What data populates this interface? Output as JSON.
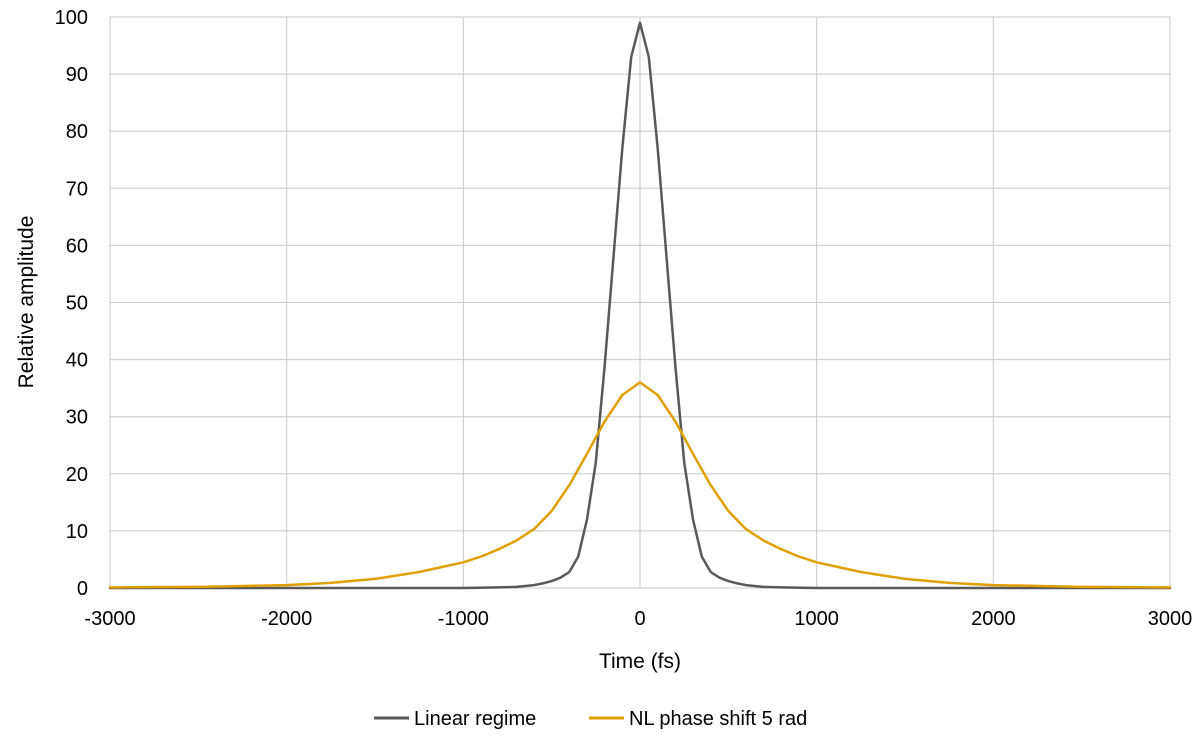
{
  "chart_data": {
    "type": "line",
    "title": "",
    "xlabel": "Time (fs)",
    "ylabel": "Relative amplitude",
    "xlim": [
      -3000,
      3000
    ],
    "ylim": [
      0,
      100
    ],
    "xticks": [
      -3000,
      -2000,
      -1000,
      0,
      1000,
      2000,
      3000
    ],
    "yticks": [
      0,
      10,
      20,
      30,
      40,
      50,
      60,
      70,
      80,
      90,
      100
    ],
    "grid": true,
    "legend_position": "bottom",
    "series": [
      {
        "name": "Linear regime",
        "color": "#595959",
        "x": [
          -3000,
          -2000,
          -1000,
          -800,
          -700,
          -600,
          -550,
          -500,
          -450,
          -400,
          -350,
          -300,
          -250,
          -200,
          -150,
          -100,
          -50,
          0,
          50,
          100,
          150,
          200,
          250,
          300,
          350,
          400,
          450,
          500,
          550,
          600,
          700,
          800,
          1000,
          2000,
          3000
        ],
        "y": [
          0,
          0,
          0,
          0.1,
          0.2,
          0.5,
          0.8,
          1.2,
          1.8,
          2.8,
          5.5,
          12,
          22,
          39,
          58,
          77,
          93,
          99,
          93,
          77,
          58,
          39,
          22,
          12,
          5.5,
          2.8,
          1.8,
          1.2,
          0.8,
          0.5,
          0.2,
          0.1,
          0,
          0,
          0
        ]
      },
      {
        "name": "NL phase shift 5 rad",
        "color": "#e0a000",
        "x": [
          -3000,
          -2500,
          -2000,
          -1750,
          -1500,
          -1250,
          -1000,
          -900,
          -800,
          -700,
          -600,
          -500,
          -400,
          -300,
          -200,
          -100,
          0,
          100,
          200,
          300,
          400,
          500,
          600,
          700,
          800,
          900,
          1000,
          1250,
          1500,
          1750,
          2000,
          2500,
          3000
        ],
        "y": [
          0.1,
          0.2,
          0.5,
          0.9,
          1.6,
          2.8,
          4.5,
          5.5,
          6.8,
          8.3,
          10.3,
          13.5,
          18,
          23.5,
          29.2,
          33.8,
          36,
          33.8,
          29.2,
          23.5,
          18,
          13.5,
          10.3,
          8.3,
          6.8,
          5.5,
          4.5,
          2.8,
          1.6,
          0.9,
          0.5,
          0.2,
          0.1
        ]
      }
    ]
  }
}
